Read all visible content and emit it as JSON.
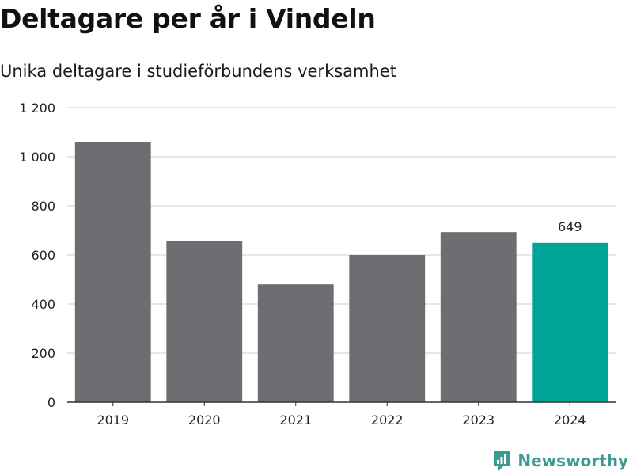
{
  "chart_data": {
    "type": "bar",
    "title": "Deltagare per år i Vindeln",
    "subtitle": "Unika deltagare i studieförbundens verksamhet",
    "categories": [
      "2019",
      "2020",
      "2021",
      "2022",
      "2023",
      "2024"
    ],
    "values": [
      1058,
      655,
      480,
      600,
      693,
      649
    ],
    "ylim": [
      0,
      1200
    ],
    "yticks": [
      0,
      200,
      400,
      600,
      800,
      1000,
      1200
    ],
    "ytick_labels": [
      "0",
      "200",
      "400",
      "600",
      "800",
      "1 000",
      "1 200"
    ],
    "highlight_index": 5,
    "data_labels": [
      {
        "index": 5,
        "text": "649"
      }
    ],
    "grid": true,
    "colors": {
      "bar": "#6e6d72",
      "highlight": "#00a397",
      "grid": "#dddddd",
      "axis": "#333333"
    }
  },
  "brand": {
    "name": "Newsworthy",
    "icon": "newsworthy-logo-icon",
    "color": "#3c9a94"
  }
}
